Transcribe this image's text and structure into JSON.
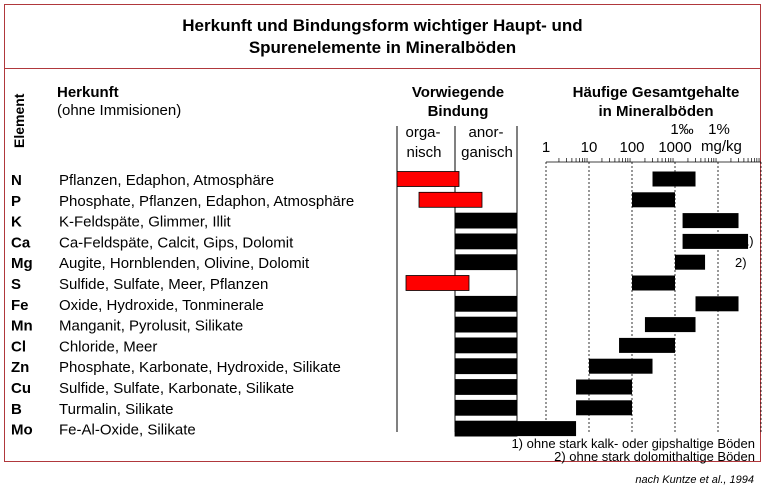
{
  "title_line1": "Herkunft und Bindungsform wichtiger Haupt- und",
  "title_line2": "Spurenelemente in Mineralböden",
  "headers": {
    "element": "Element",
    "origin_title": "Herkunft",
    "origin_sub": "(ohne Immisionen)",
    "binding_line1": "Vorwiegende",
    "binding_line2": "Bindung",
    "organic_line1": "orga-",
    "organic_line2": "nisch",
    "inorganic_line1": "anor-",
    "inorganic_line2": "ganisch",
    "content_line1": "Häufige Gesamtgehalte",
    "content_line2": "in Mineralböden",
    "unit_permille": "1‰",
    "unit_percent": "1%",
    "unit_mgkg": "mg/kg"
  },
  "scale_ticks": [
    "1",
    "10",
    "100",
    "1000"
  ],
  "colors": {
    "organic": "#ff0000",
    "inorganic": "#000000",
    "frame": "#b0383c"
  },
  "rows": [
    {
      "element": "N",
      "origin": "Pflanzen, Edaphon, Atmosphäre",
      "binding": "organic",
      "range": [
        300,
        3000
      ],
      "note": ""
    },
    {
      "element": "P",
      "origin": "Phosphate, Pflanzen, Edaphon, Atmosphäre",
      "binding": "organic",
      "range": [
        100,
        1000
      ],
      "note": ""
    },
    {
      "element": "K",
      "origin": "K-Feldspäte, Glimmer, Illit",
      "binding": "inorganic",
      "range": [
        1500,
        30000
      ],
      "note": ""
    },
    {
      "element": "Ca",
      "origin": "Ca-Feldspäte, Calcit, Gips, Dolomit",
      "binding": "inorganic",
      "range": [
        1500,
        50000
      ],
      "note": "1)"
    },
    {
      "element": "Mg",
      "origin": "Augite, Hornblenden, Olivine, Dolomit",
      "binding": "inorganic",
      "range": [
        1000,
        5000
      ],
      "note": "2)"
    },
    {
      "element": "S",
      "origin": "Sulfide, Sulfate, Meer, Pflanzen",
      "binding": "organic",
      "range": [
        100,
        1000
      ],
      "note": ""
    },
    {
      "element": "Fe",
      "origin": "Oxide, Hydroxide, Tonminerale",
      "binding": "inorganic",
      "range": [
        3000,
        30000
      ],
      "note": ""
    },
    {
      "element": "Mn",
      "origin": "Manganit, Pyrolusit, Silikate",
      "binding": "inorganic",
      "range": [
        200,
        3000
      ],
      "note": ""
    },
    {
      "element": "Cl",
      "origin": "Chloride, Meer",
      "binding": "inorganic",
      "range": [
        50,
        1000
      ],
      "note": ""
    },
    {
      "element": "Zn",
      "origin": "Phosphate, Karbonate, Hydroxide, Silikate",
      "binding": "inorganic",
      "range": [
        10,
        300
      ],
      "note": ""
    },
    {
      "element": "Cu",
      "origin": "Sulfide, Sulfate, Karbonate, Silikate",
      "binding": "inorganic",
      "range": [
        5,
        100
      ],
      "note": ""
    },
    {
      "element": "B",
      "origin": "Turmalin, Silikate",
      "binding": "inorganic",
      "range": [
        5,
        100
      ],
      "note": ""
    },
    {
      "element": "Mo",
      "origin": "Fe-Al-Oxide, Silikate",
      "binding": "inorganic",
      "range": [
        0.1,
        5
      ],
      "note": ""
    }
  ],
  "footnotes": [
    "1) ohne stark kalk- oder gipshaltige Böden",
    "2) ohne stark dolomithaltige Böden"
  ],
  "source": "nach Kuntze et al., 1994"
}
